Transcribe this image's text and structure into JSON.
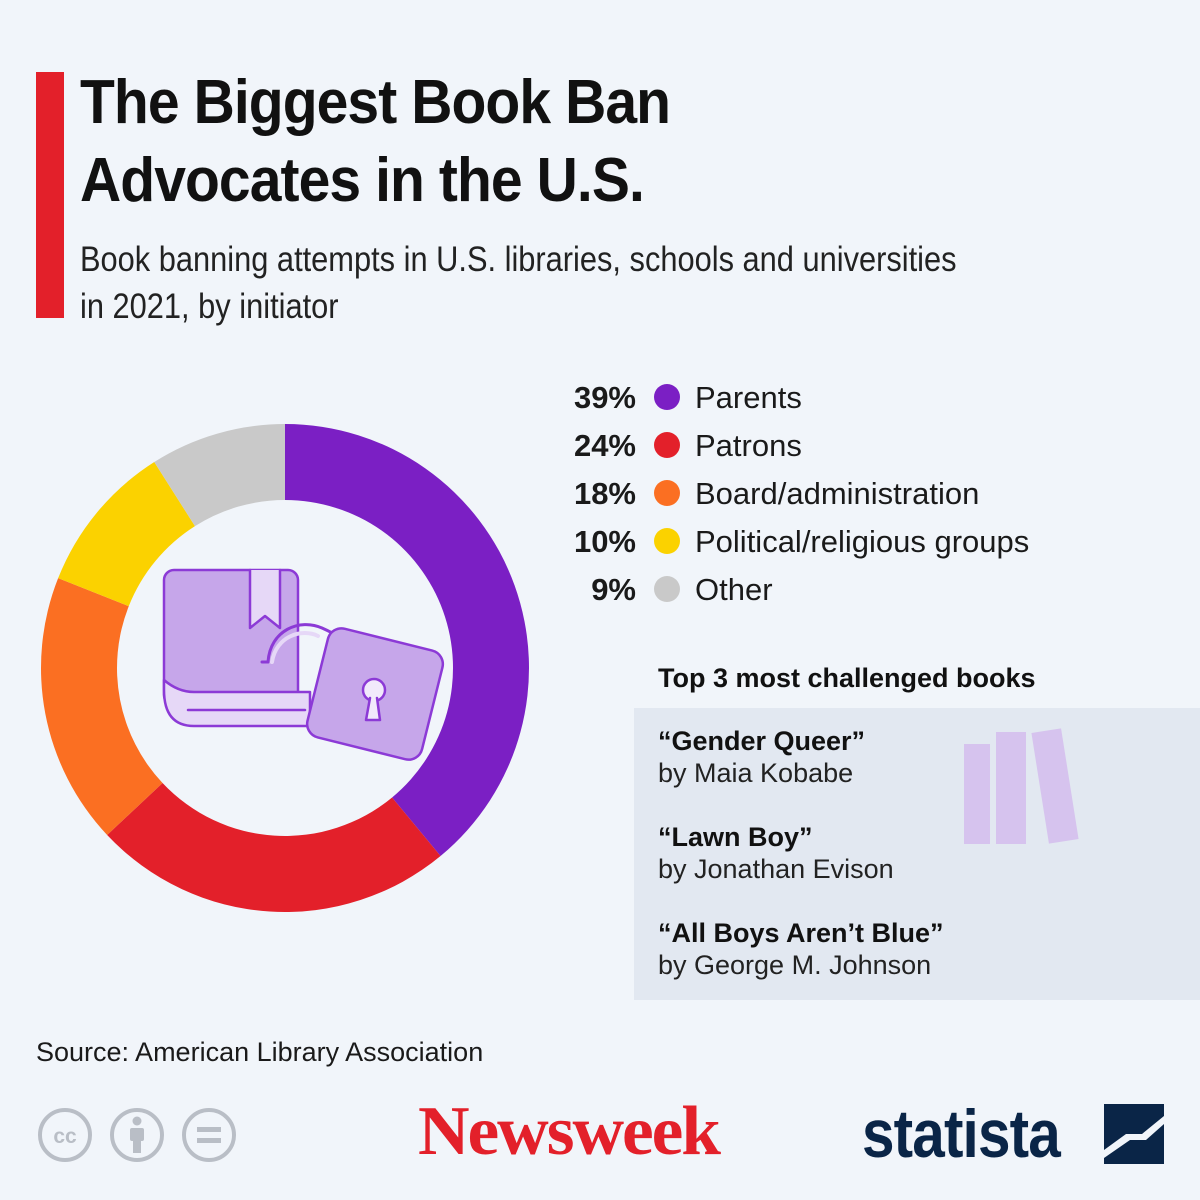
{
  "header": {
    "title_line1": "The Biggest Book Ban",
    "title_line2": "Advocates in the U.S.",
    "subtitle_line1": "Book banning attempts in U.S. libraries, schools and universities",
    "subtitle_line2": "in 2021, by initiator"
  },
  "chart_data": {
    "type": "pie",
    "title": "The Biggest Book Ban Advocates in the U.S.",
    "subtitle": "Book banning attempts in U.S. libraries, schools and universities in 2021, by initiator",
    "donut": true,
    "unit": "%",
    "categories": [
      "Parents",
      "Patrons",
      "Board/administration",
      "Political/religious groups",
      "Other"
    ],
    "values": [
      39,
      24,
      18,
      10,
      9
    ],
    "value_labels": [
      "39%",
      "24%",
      "18%",
      "10%",
      "9%"
    ],
    "colors": [
      "#7b1fc4",
      "#e3202a",
      "#fb6f22",
      "#fbd200",
      "#c9c9c9"
    ],
    "legend_position": "right"
  },
  "center_icon": "book-lock-icon",
  "books": {
    "heading": "Top 3 most challenged books",
    "icon": "books-icon",
    "items": [
      {
        "title": "“Gender Queer”",
        "author": "by Maia Kobabe"
      },
      {
        "title": "“Lawn Boy”",
        "author": "by Jonathan Evison"
      },
      {
        "title": "“All Boys Aren’t Blue”",
        "author": "by George M. Johnson"
      }
    ]
  },
  "footer": {
    "source": "Source: American Library Association",
    "license_icons": [
      "cc-icon",
      "attribution-icon",
      "no-derivatives-icon"
    ],
    "newsweek_logo": "Newsweek",
    "statista_logo": "statista",
    "statista_icon": "statista-logo-icon"
  }
}
